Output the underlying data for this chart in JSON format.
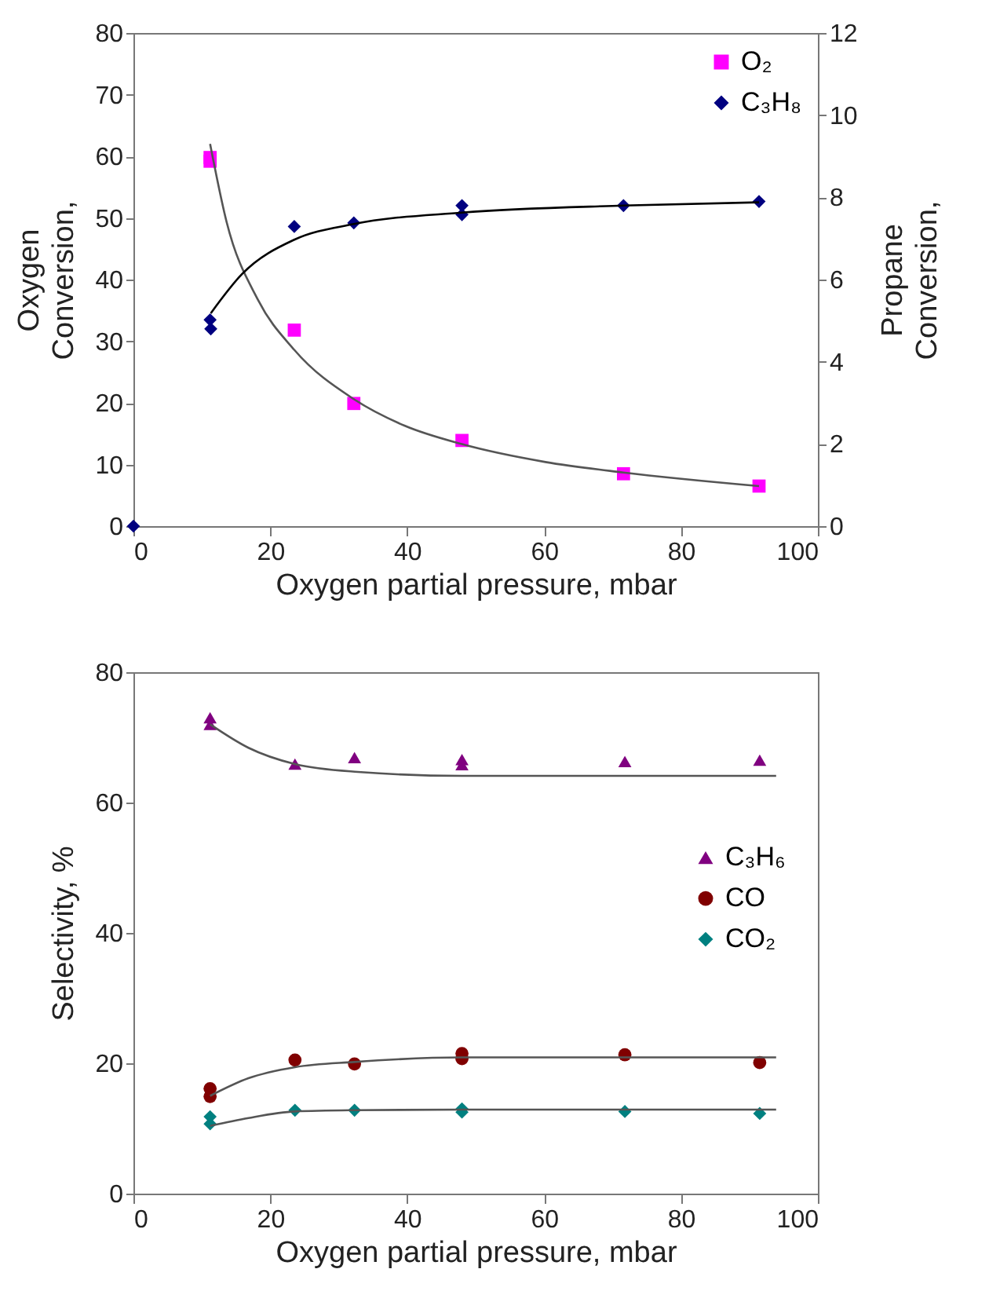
{
  "chart_data": [
    {
      "type": "scatter",
      "xlabel": "Oxygen partial pressure, mbar",
      "ylabel": "Oxygen\nConversion,",
      "y2label": "Propane\nConversion,",
      "xlim": [
        0,
        100
      ],
      "xticks": [
        0,
        20,
        40,
        60,
        80,
        100
      ],
      "ylim": [
        0,
        80
      ],
      "yticks": [
        0,
        10,
        20,
        30,
        40,
        50,
        60,
        70,
        80
      ],
      "y2lim": [
        0,
        12
      ],
      "y2ticks": [
        0,
        2,
        4,
        6,
        8,
        10,
        12
      ],
      "grid": false,
      "legend": "top right",
      "series": [
        {
          "name": "O₂",
          "type": "scatter",
          "marker": "square",
          "color": "#ff00ff",
          "x": [
            11.2,
            11.2,
            23.5,
            32.2,
            48,
            71.6,
            91.4
          ],
          "values": [
            59.2,
            59.8,
            31.8,
            19.9,
            13.9,
            8.5,
            6.5
          ]
        },
        {
          "name": "C₃H₈",
          "type": "scatter",
          "marker": "diamond",
          "axis": "y2",
          "color": "#000080",
          "x": [
            0,
            11.2,
            11.3,
            23.5,
            32.2,
            48,
            48,
            71.6,
            91.4
          ],
          "values": [
            0,
            5.02,
            4.8,
            7.29,
            7.38,
            7.8,
            7.58,
            7.8,
            7.9
          ]
        },
        {
          "type": "line",
          "color": "#555555",
          "x": [
            11.2,
            13.6,
            18.2,
            23.5,
            32.2,
            39.6,
            48,
            60.2,
            71.6,
            91.4
          ],
          "values": [
            62,
            49.4,
            36.7,
            28.6,
            20.6,
            16.3,
            13.3,
            10.4,
            8.7,
            6.5
          ]
        },
        {
          "type": "line",
          "color": "#000000",
          "axis": "y2",
          "x": [
            11.3,
            15.9,
            23.5,
            32.2,
            48,
            71.6,
            91.4
          ],
          "values": [
            5.18,
            6.14,
            6.97,
            7.35,
            7.63,
            7.8,
            7.88
          ]
        }
      ]
    },
    {
      "type": "scatter",
      "xlabel": "Oxygen partial pressure, mbar",
      "ylabel": "Selectivity, %",
      "xlim": [
        0,
        100
      ],
      "xticks": [
        0,
        20,
        40,
        60,
        80,
        100
      ],
      "ylim": [
        0,
        80
      ],
      "yticks": [
        0,
        20,
        40,
        60,
        80
      ],
      "grid": false,
      "legend": "right",
      "series": [
        {
          "name": "C₃H₆",
          "type": "scatter",
          "marker": "triangle",
          "color": "#800080",
          "x": [
            11.2,
            11.2,
            23.6,
            32.3,
            48,
            48,
            71.8,
            91.5
          ],
          "values": [
            73,
            72,
            65.9,
            66.9,
            66.6,
            65.8,
            66.3,
            66.5
          ]
        },
        {
          "name": "CO",
          "type": "scatter",
          "marker": "circle",
          "color": "#800000",
          "x": [
            11.2,
            11.2,
            23.6,
            32.3,
            48,
            48,
            71.8,
            91.5
          ],
          "values": [
            16.1,
            14.9,
            20.5,
            19.9,
            21.5,
            20.7,
            21.3,
            20.1
          ]
        },
        {
          "name": "CO₂",
          "type": "scatter",
          "marker": "diamond",
          "color": "#008080",
          "x": [
            11.2,
            11.2,
            23.6,
            32.3,
            48,
            48,
            71.8,
            91.5
          ],
          "values": [
            11.8,
            10.7,
            12.8,
            12.8,
            13,
            12.5,
            12.6,
            12.3
          ]
        },
        {
          "type": "line",
          "color": "#555555",
          "x": [
            11.2,
            16.8,
            23.6,
            32.8,
            48,
            93.9
          ],
          "values": [
            72,
            68.4,
            65.9,
            64.7,
            64.1,
            64.1
          ]
        },
        {
          "type": "line",
          "color": "#555555",
          "x": [
            11.2,
            16.8,
            23.6,
            32.3,
            48,
            93.9
          ],
          "values": [
            15,
            17.7,
            19.4,
            20.2,
            20.9,
            20.9
          ]
        },
        {
          "type": "line",
          "color": "#555555",
          "x": [
            11.2,
            16.8,
            23.6,
            32.3,
            48,
            93.9
          ],
          "values": [
            10.4,
            11.6,
            12.6,
            12.8,
            12.9,
            12.9
          ]
        }
      ]
    }
  ]
}
